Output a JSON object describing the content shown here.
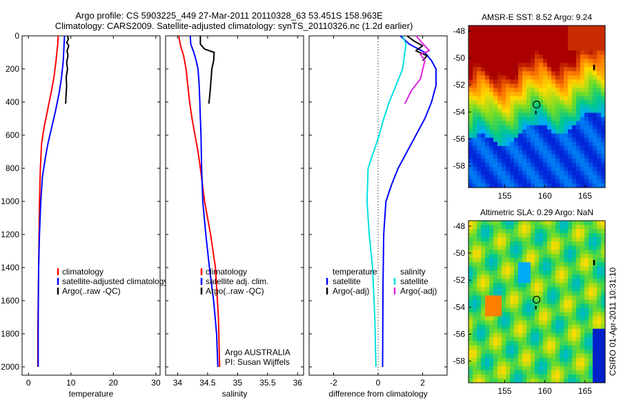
{
  "title": {
    "line1": "Argo profile: CS 5903225_449 27-Mar-2011 20110328_63 53.451S 158.963E",
    "line2": "Climatology: CARS2009. Satellite-adjusted climatology: synTS_20110326.nc (1.2d earlier)"
  },
  "footer_stamp": "CSIRO 01-Apr-2011 10:31:10",
  "colors": {
    "climatology": "#ff0000",
    "satellite": "#0000ff",
    "argo": "#000000",
    "sat_salinity_diff": "#00e0e0",
    "argo_salinity_diff": "#e020e0"
  },
  "chart_data": [
    {
      "id": "temperature",
      "type": "line",
      "xlabel": "temperature",
      "xlim": [
        -1.5,
        31
      ],
      "xticks": [
        0,
        10,
        20,
        30
      ],
      "ylim": [
        2050,
        0
      ],
      "yticks": [
        0,
        200,
        400,
        600,
        800,
        1000,
        1200,
        1400,
        1600,
        1800,
        2000
      ],
      "series": [
        {
          "name": "climatology",
          "color": "#ff0000",
          "x": [
            7.0,
            6.9,
            6.5,
            6.0,
            5.3,
            4.5,
            3.7,
            3.1,
            2.8,
            2.6,
            2.5,
            2.4,
            2.3,
            2.2,
            2.2
          ],
          "y": [
            0,
            50,
            150,
            250,
            350,
            450,
            550,
            650,
            800,
            1000,
            1200,
            1400,
            1600,
            1800,
            2000
          ]
        },
        {
          "name": "satellite-adjusted climatology",
          "color": "#0000ff",
          "x": [
            8.5,
            8.4,
            8.2,
            7.8,
            7.2,
            6.4,
            5.5,
            4.6,
            3.9,
            3.3,
            2.9,
            2.6,
            2.4,
            2.3,
            2.3
          ],
          "y": [
            0,
            50,
            150,
            250,
            350,
            450,
            550,
            650,
            750,
            850,
            1000,
            1200,
            1400,
            1700,
            2000
          ]
        },
        {
          "name": "Argo(..raw -QC)",
          "color": "#000000",
          "x": [
            9.2,
            9.4,
            9.0,
            9.5,
            9.1,
            9.3,
            9.0,
            9.2,
            8.9,
            9.0,
            8.9,
            8.8,
            8.8,
            8.7
          ],
          "y": [
            0,
            20,
            40,
            60,
            90,
            120,
            160,
            200,
            250,
            300,
            340,
            380,
            400,
            410
          ]
        }
      ],
      "legend": {
        "position": "lower-right",
        "entries": [
          "climatology",
          "satellite-adjusted climatology",
          "Argo(..raw -QC)"
        ]
      }
    },
    {
      "id": "salinity",
      "type": "line",
      "xlabel": "salinity",
      "xlim": [
        33.8,
        36.1
      ],
      "xticks": [
        34,
        34.5,
        35,
        35.5,
        36
      ],
      "ylim": [
        2050,
        0
      ],
      "yticks": [
        0,
        200,
        400,
        600,
        800,
        1000,
        1200,
        1400,
        1600,
        1800,
        2000
      ],
      "series": [
        {
          "name": "climatology",
          "color": "#ff0000",
          "x": [
            34.02,
            34.05,
            34.1,
            34.14,
            34.17,
            34.2,
            34.24,
            34.29,
            34.34,
            34.38,
            34.45,
            34.55,
            34.63,
            34.68,
            34.7
          ],
          "y": [
            0,
            60,
            120,
            200,
            300,
            400,
            500,
            600,
            700,
            800,
            1000,
            1200,
            1400,
            1700,
            2000
          ]
        },
        {
          "name": "satellite adj. clim.",
          "color": "#0000ff",
          "x": [
            34.21,
            34.22,
            34.27,
            34.31,
            34.34,
            34.36,
            34.37,
            34.38,
            34.39,
            34.4,
            34.42,
            34.47,
            34.53,
            34.6,
            34.65,
            34.67
          ],
          "y": [
            0,
            50,
            100,
            150,
            200,
            300,
            400,
            500,
            600,
            800,
            1000,
            1200,
            1400,
            1600,
            1800,
            2000
          ]
        },
        {
          "name": "Argo(..raw -QC)",
          "color": "#000000",
          "x": [
            34.38,
            34.38,
            34.45,
            34.61,
            34.6,
            34.57,
            34.55,
            34.53,
            34.52
          ],
          "y": [
            0,
            50,
            80,
            100,
            150,
            200,
            300,
            380,
            410
          ]
        }
      ],
      "legend": {
        "position": "lower-right",
        "entries": [
          "climatology",
          "satellite adj. clim.",
          "Argo(..raw -QC)"
        ]
      },
      "annotation": [
        "Argo AUSTRALIA",
        "PI: Susan Wijffels"
      ]
    },
    {
      "id": "difference",
      "type": "line",
      "xlabel": "difference from climatology",
      "xlim": [
        -3.1,
        3.1
      ],
      "xticks": [
        -2,
        0,
        2
      ],
      "ylim": [
        2050,
        0
      ],
      "yticks": [
        0,
        200,
        400,
        600,
        800,
        1000,
        1200,
        1400,
        1600,
        1800,
        2000
      ],
      "series": [
        {
          "name": "temperature: satellite",
          "color": "#0000ff",
          "x": [
            1.0,
            1.4,
            2.1,
            2.4,
            2.6,
            2.6,
            2.4,
            2.1,
            1.7,
            1.3,
            0.9,
            0.6,
            0.35,
            0.25,
            0.22,
            0.2
          ],
          "y": [
            0,
            50,
            100,
            150,
            200,
            300,
            400,
            500,
            600,
            700,
            800,
            900,
            1000,
            1200,
            1500,
            2000
          ]
        },
        {
          "name": "temperature: Argo(-adj)",
          "color": "#000000",
          "x": [
            1.3,
            1.6,
            2.0,
            1.7,
            2.2,
            2.0
          ],
          "y": [
            0,
            30,
            60,
            90,
            120,
            150
          ]
        },
        {
          "name": "salinity: satellite",
          "color": "#00e0e0",
          "x": [
            1.1,
            1.25,
            1.2,
            1.1,
            0.8,
            0.5,
            0.25,
            0.05,
            -0.2,
            -0.45,
            -0.5,
            -0.4,
            -0.25,
            -0.15,
            -0.1
          ],
          "y": [
            0,
            50,
            100,
            200,
            300,
            400,
            500,
            600,
            700,
            800,
            1000,
            1200,
            1400,
            1700,
            2000
          ]
        },
        {
          "name": "salinity: Argo(-adj)",
          "color": "#e020e0",
          "x": [
            1.7,
            2.3,
            1.9,
            2.1,
            1.9,
            1.5,
            1.2
          ],
          "y": [
            0,
            90,
            110,
            150,
            260,
            330,
            410
          ]
        }
      ],
      "legend": {
        "position": "lower-center",
        "groups": [
          {
            "heading": "temperature",
            "entries": [
              "satellite",
              "Argo(-adj)"
            ]
          },
          {
            "heading": "salinity",
            "entries": [
              "satellite",
              "Argo(-adj)"
            ]
          }
        ]
      }
    },
    {
      "id": "sst_map",
      "type": "heatmap",
      "title": "AMSR-E SST: 8.52 Argo: 9.24",
      "xlim": [
        150.5,
        167.5
      ],
      "ylim": [
        -59.6,
        -47.6
      ],
      "xticks": [
        155,
        160,
        165
      ],
      "yticks": [
        -48,
        -50,
        -52,
        -54,
        -56,
        -58
      ],
      "float_position": {
        "lon": 158.963,
        "lat": -53.451
      }
    },
    {
      "id": "sla_map",
      "type": "heatmap",
      "title": "Altimetric SLA: 0.29 Argo: NaN",
      "xlim": [
        150.5,
        167.5
      ],
      "ylim": [
        -59.6,
        -47.6
      ],
      "xticks": [
        155,
        160,
        165
      ],
      "yticks": [
        -48,
        -50,
        -52,
        -54,
        -56,
        -58
      ],
      "float_position": {
        "lon": 158.963,
        "lat": -53.451
      }
    }
  ]
}
